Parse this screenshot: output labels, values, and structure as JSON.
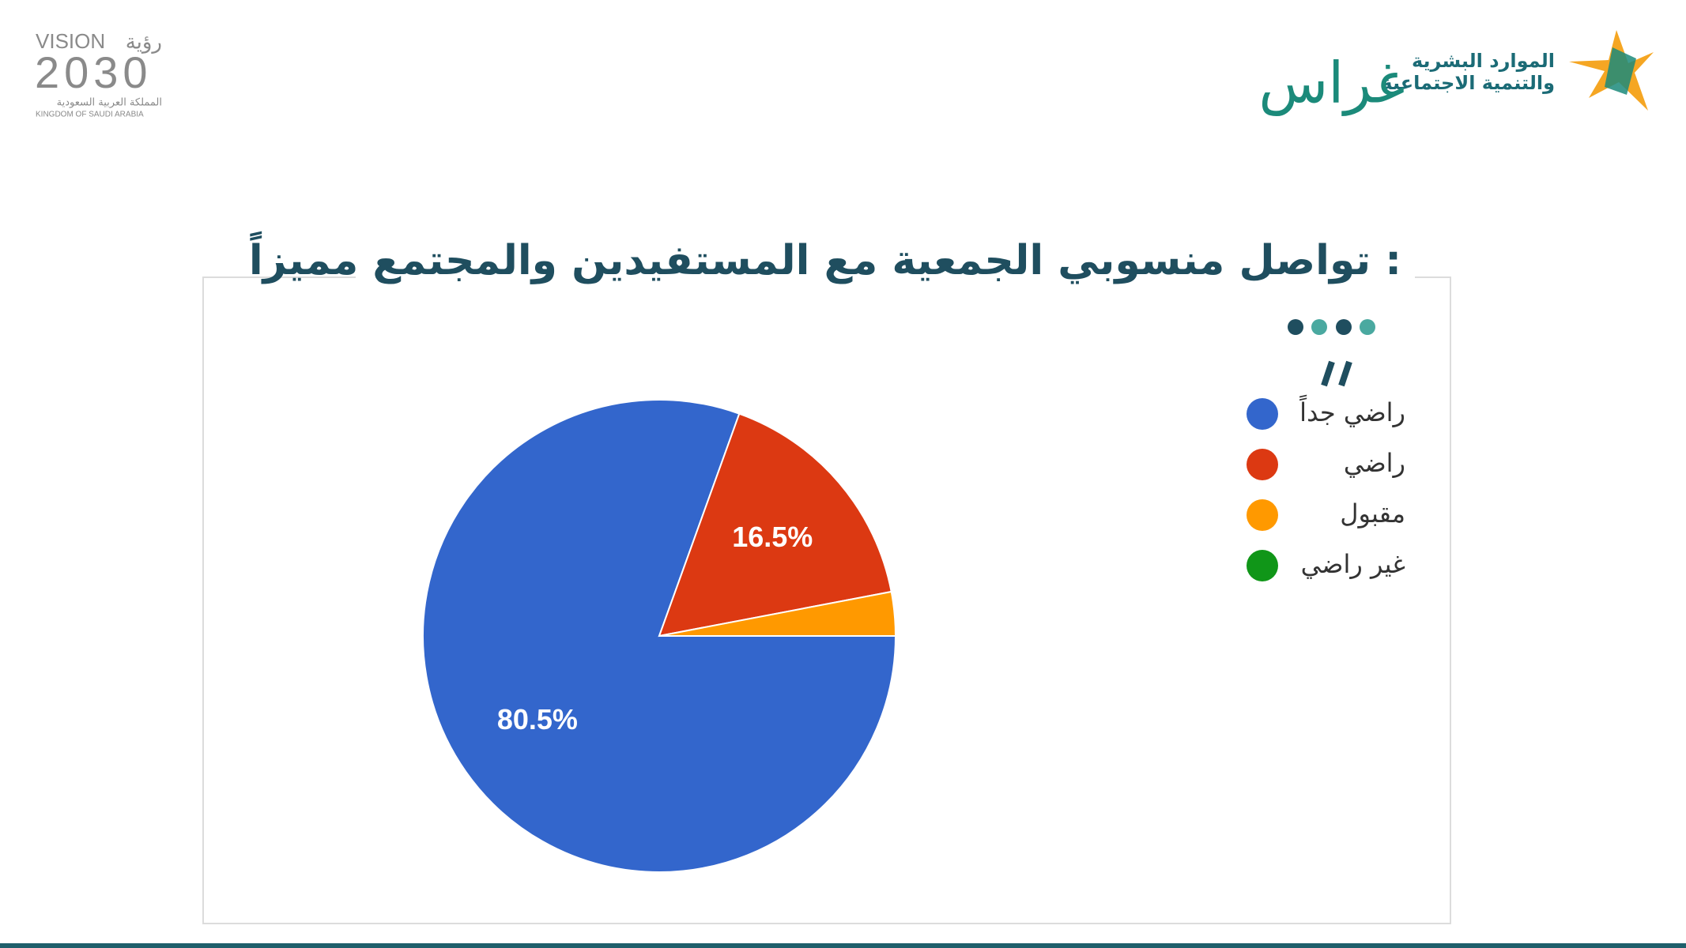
{
  "header": {
    "vision_en": "VISION",
    "vision_ar": "رؤية",
    "vision_year": "2030",
    "kingdom_ar": "المملكة العربية السعودية",
    "kingdom_en": "KINGDOM OF SAUDI ARABIA",
    "ministry_line1": "الموارد البشرية",
    "ministry_line2": "والتنمية الاجتماعية",
    "ghras": "غراس"
  },
  "chart_data": {
    "type": "pie",
    "title": "تواصل منسوبي الجمعية مع المستفيدين والمجتمع مميزاً :",
    "categories": [
      "راضي جداً",
      "راضي",
      "مقبول",
      "غير راضي"
    ],
    "values": [
      80.5,
      16.5,
      3,
      0
    ],
    "value_labels": [
      "80.5%",
      "16.5%",
      null,
      null
    ],
    "colors": [
      "#3366cc",
      "#dc3912",
      "#ff9900",
      "#109618"
    ],
    "legend": "right"
  }
}
